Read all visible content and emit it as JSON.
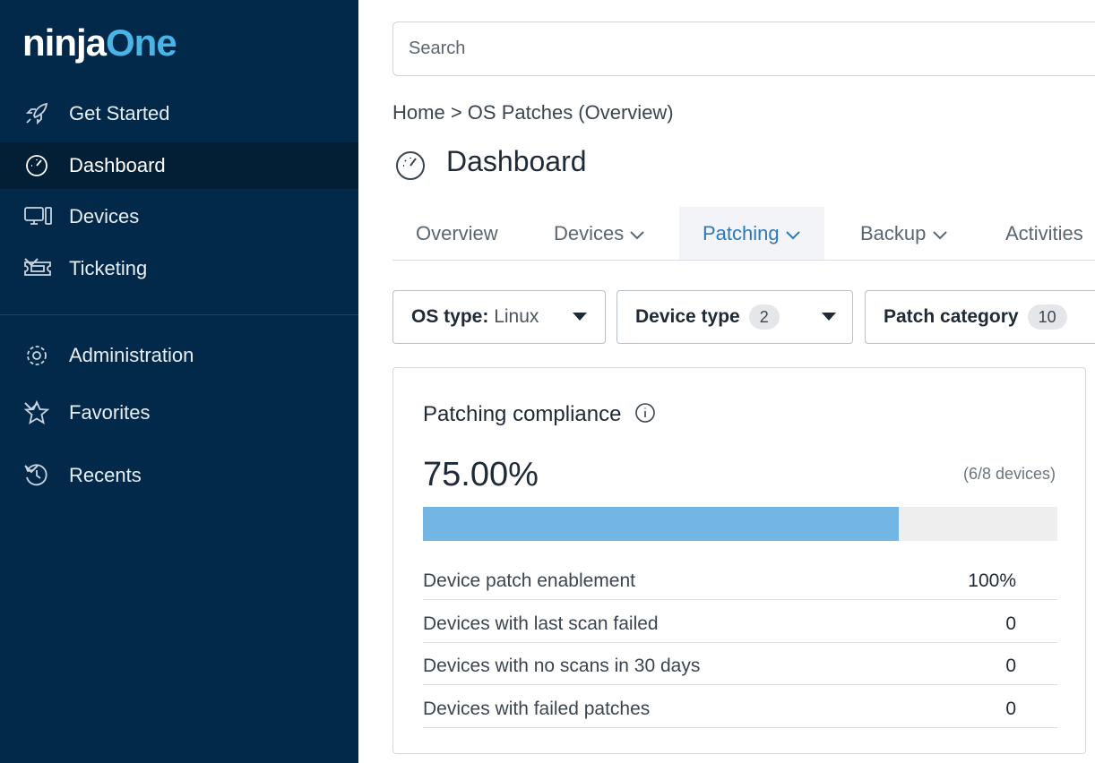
{
  "sidebar": {
    "logo": {
      "first": "ninja",
      "second": "One"
    },
    "nav": [
      "Get Started",
      "Dashboard",
      "Devices",
      "Ticketing"
    ],
    "secondary": [
      "Administration",
      "Favorites",
      "Recents"
    ]
  },
  "search": {
    "placeholder": "Search"
  },
  "breadcrumb": {
    "home": "Home",
    "separator": ">",
    "current": "OS Patches (Overview)"
  },
  "page": {
    "title": "Dashboard"
  },
  "tabs": [
    "Overview",
    "Devices",
    "Patching",
    "Backup",
    "Activities"
  ],
  "filters": [
    {
      "label": "OS type:",
      "value": "Linux"
    },
    {
      "label": "Device type",
      "count": 2
    },
    {
      "label": "Patch category",
      "count": 10
    }
  ],
  "card": {
    "title": "Patching compliance",
    "compliance": {
      "value": 75,
      "label": "75.00%"
    },
    "devices": "(6/8 devices)",
    "rows": [
      [
        "Device patch enablement",
        "100%"
      ],
      [
        "Devices with last scan failed",
        "0"
      ],
      [
        "Devices with no scans in 30 days",
        "0"
      ],
      [
        "Devices with failed patches",
        "0"
      ]
    ]
  }
}
